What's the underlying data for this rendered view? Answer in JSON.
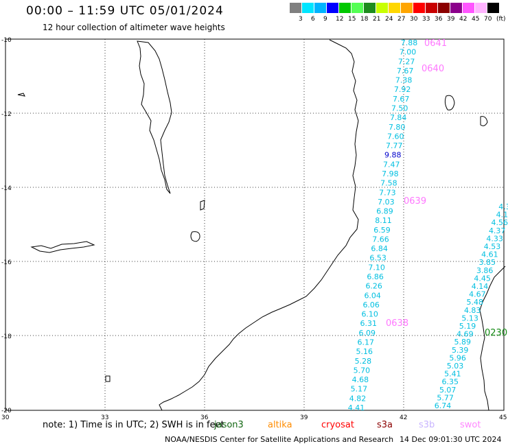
{
  "header": {
    "title": "00:00 – 11:59 UTC 05/01/2024",
    "subtitle": "12 hour collection of altimeter wave heights"
  },
  "colorbar": {
    "colors": [
      "#808080",
      "#00e5ff",
      "#00b4ff",
      "#0000ff",
      "#00c800",
      "#54ff54",
      "#1e8c1e",
      "#c8ff00",
      "#ffd700",
      "#ffa500",
      "#ff0000",
      "#c80000",
      "#8b0000",
      "#8b008b",
      "#ff55ff",
      "#ffb4ff",
      "#000000"
    ],
    "labels": [
      "3",
      "6",
      "9",
      "12",
      "15",
      "18",
      "21",
      "24",
      "27",
      "30",
      "33",
      "36",
      "39",
      "42",
      "45",
      "70",
      "(ft)"
    ]
  },
  "axes": {
    "lon_labels": [
      "30",
      "33",
      "36",
      "39",
      "42",
      "45"
    ],
    "lat_labels": [
      "-10",
      "-12",
      "-14",
      "-16",
      "-18",
      "-20"
    ]
  },
  "passes": [
    {
      "label": "0641",
      "color": "#ff77ff"
    },
    {
      "label": "0640",
      "color": "#ff77ff"
    },
    {
      "label": "0639",
      "color": "#ff77ff"
    },
    {
      "label": "0638",
      "color": "#ff77ff"
    },
    {
      "label": "0230",
      "color": "#118811"
    }
  ],
  "track_a": {
    "values": [
      "7.88",
      "7.00",
      "7.27",
      "7.67",
      "7.38",
      "7.92",
      "7.67",
      "7.50",
      "7.84",
      "7.80",
      "7.60",
      "7.77",
      "9.88",
      "7.47",
      "7.98",
      "7.58",
      "7.73",
      "7.03",
      "6.89",
      "8.11",
      "6.59",
      "7.66",
      "6.84",
      "6.53",
      "7.10",
      "6.86",
      "6.26",
      "6.04",
      "6.06",
      "6.10",
      "6.31",
      "6.09",
      "6.17",
      "5.16",
      "5.28",
      "5.70",
      "4.68",
      "5.17",
      "4.82",
      "4.41"
    ]
  },
  "track_b": {
    "values": [
      "6.74",
      "5.77",
      "5.07",
      "6.35",
      "5.41",
      "5.03",
      "5.96",
      "5.39",
      "5.89",
      "4.69",
      "5.19",
      "5.13",
      "4.83",
      "5.48",
      "4.67",
      "4.14",
      "4.45",
      "3.86",
      "3.85",
      "4.61",
      "4.53",
      "4.33",
      "4.37",
      "4.56",
      "4.1",
      "4.3"
    ]
  },
  "footer": {
    "note": "note: 1) Time is in UTC; 2) SWH is in feet",
    "missions": [
      {
        "label": "jason3",
        "color": "#116611"
      },
      {
        "label": "altika",
        "color": "#ff8c00"
      },
      {
        "label": "cryosat",
        "color": "#ff0000"
      },
      {
        "label": "s3a",
        "color": "#8b0000"
      },
      {
        "label": "s3b",
        "color": "#c8b4ff"
      },
      {
        "label": "swot",
        "color": "#ff88ff"
      }
    ],
    "credit": "NOAA/NESDIS Center for Satellite Applications and Research",
    "created": "14 Dec 09:01:30 UTC 2024"
  }
}
